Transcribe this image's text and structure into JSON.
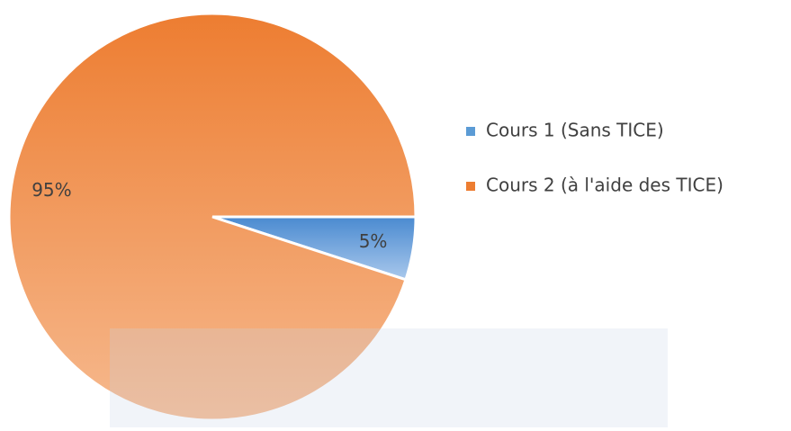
{
  "chart_data": {
    "type": "pie",
    "categories": [
      "Cours 1 (Sans TICE)",
      "Cours 2 (à l'aide des TICE)"
    ],
    "values": [
      5,
      95
    ],
    "value_labels": [
      "5%",
      "95%"
    ],
    "colors": [
      "#5b9bd5",
      "#ed7d31"
    ],
    "legend": "right"
  }
}
